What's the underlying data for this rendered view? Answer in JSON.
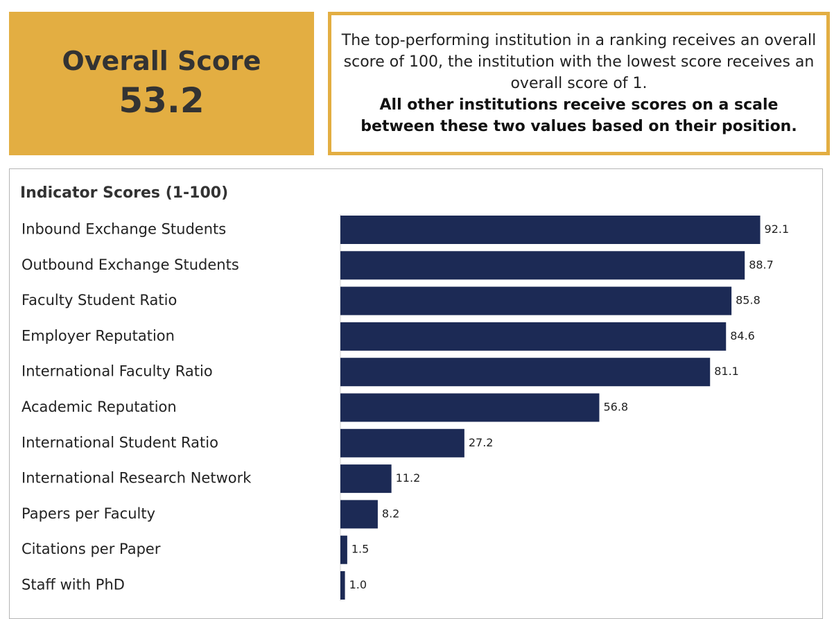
{
  "overall": {
    "label": "Overall Score",
    "value": "53.2"
  },
  "note": {
    "text": "The top-performing institution in a ranking receives an overall score of 100, the institution with the lowest score receives an overall score of 1.",
    "bold": "All other institutions receive scores on a scale between these two values based on their position."
  },
  "colors": {
    "accent": "#e3ae42",
    "bar": "#1c2a55"
  },
  "chart_data": {
    "type": "bar",
    "orientation": "horizontal",
    "title": "Indicator Scores (1-100)",
    "categories": [
      "Inbound Exchange Students",
      "Outbound Exchange Students",
      "Faculty Student Ratio",
      "Employer Reputation",
      "International Faculty Ratio",
      "Academic Reputation",
      "International Student Ratio",
      "International Research Network",
      "Papers per Faculty",
      "Citations per Paper",
      "Staff with PhD"
    ],
    "values": [
      92.1,
      88.7,
      85.8,
      84.6,
      81.1,
      56.8,
      27.2,
      11.2,
      8.2,
      1.5,
      1.0
    ],
    "value_labels": [
      "92.1",
      "88.7",
      "85.8",
      "84.6",
      "81.1",
      "56.8",
      "27.2",
      "11.2",
      "8.2",
      "1.5",
      "1.0"
    ],
    "xlim": [
      0,
      100
    ],
    "grid": false,
    "legend": "none"
  }
}
